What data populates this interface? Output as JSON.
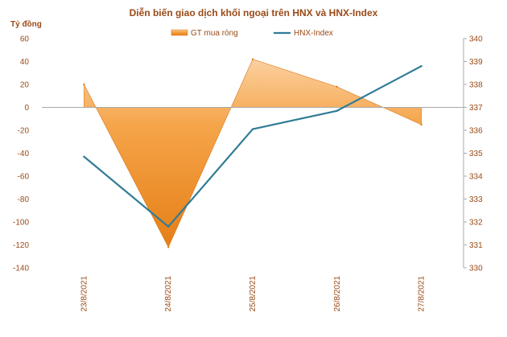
{
  "chart_data": {
    "type": "area",
    "title": "Diễn biến giao dịch khối ngoại trên HNX và HNX-Index",
    "ylabel_left": "Tỷ đồng",
    "categories": [
      "23/8/2021",
      "24/8/2021",
      "25/8/2021",
      "26/8/2021",
      "27/8/2021"
    ],
    "series": [
      {
        "name": "GT mua ròng",
        "type": "area",
        "axis": "left",
        "values": [
          20,
          -122,
          42,
          18,
          -15
        ],
        "color": "#f39a2b"
      },
      {
        "name": "HNX-Index",
        "type": "line",
        "axis": "right",
        "values": [
          334.85,
          331.8,
          336.05,
          336.85,
          338.8
        ],
        "color": "#2f7c96"
      }
    ],
    "ylim_left": [
      -140,
      60
    ],
    "yticks_left": [
      60,
      40,
      20,
      0,
      -20,
      -40,
      -60,
      -80,
      -100,
      -120,
      -140
    ],
    "ylim_right": [
      330,
      340
    ],
    "yticks_right": [
      340,
      339,
      338,
      337,
      336,
      335,
      334,
      333,
      332,
      331,
      330
    ],
    "legend_position": "top",
    "grid": false
  }
}
